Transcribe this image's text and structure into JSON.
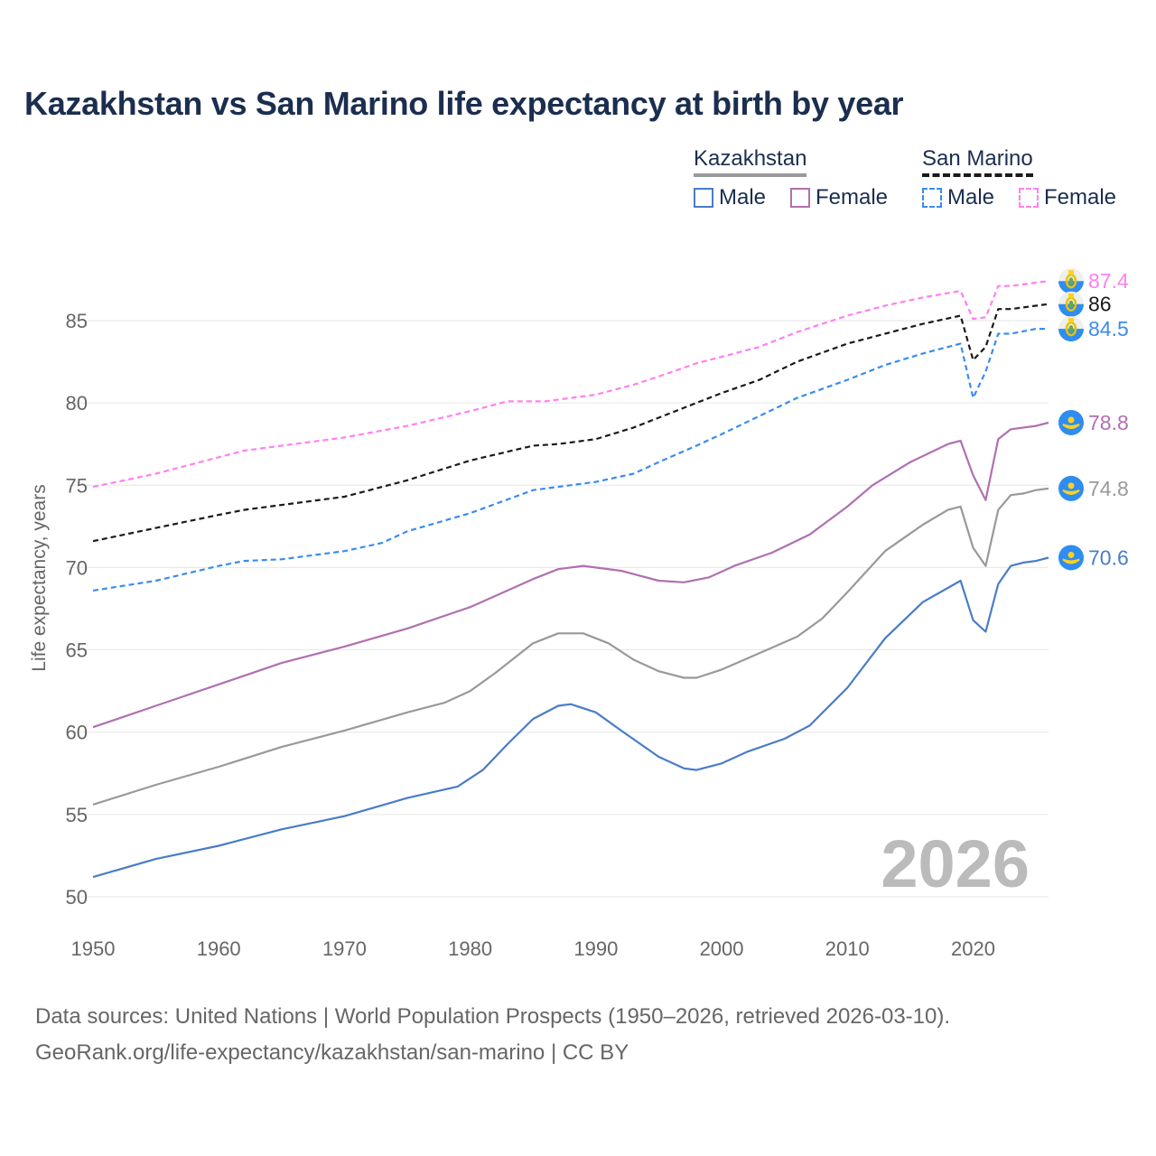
{
  "title": "Kazakhstan vs San Marino life expectancy at birth by year",
  "legend": {
    "groups": [
      {
        "name": "Kazakhstan",
        "items": [
          "Male",
          "Female"
        ]
      },
      {
        "name": "San Marino",
        "items": [
          "Male",
          "Female"
        ]
      }
    ]
  },
  "year_watermark": "2026",
  "footer": {
    "line1": "Data sources: United Nations | World Population Prospects (1950–2026, retrieved 2026-03-10).",
    "line2": "GeoRank.org/life-expectancy/kazakhstan/san-marino | CC BY"
  },
  "chart_data": {
    "type": "line",
    "title": "Kazakhstan vs San Marino life expectancy at birth by year",
    "xlabel": "",
    "ylabel": "Life expectancy, years",
    "xlim": [
      1950,
      2026
    ],
    "ylim": [
      50,
      88
    ],
    "xticks": [
      "1950",
      "1960",
      "1970",
      "1980",
      "1990",
      "2000",
      "2010",
      "2020"
    ],
    "yticks": [
      "50",
      "55",
      "60",
      "65",
      "70",
      "75",
      "80",
      "85"
    ],
    "grid": true,
    "legend_position": "top-right",
    "series": [
      {
        "name": "San Marino Female",
        "color": "#ff80f0",
        "dashed": true,
        "end_label": "87.4",
        "flag": "san-marino",
        "x": [
          1950,
          1955,
          1960,
          1962,
          1965,
          1970,
          1975,
          1980,
          1983,
          1986,
          1990,
          1993,
          1995,
          1998,
          2000,
          2003,
          2006,
          2010,
          2013,
          2016,
          2019,
          2020,
          2021,
          2022,
          2023,
          2025,
          2026
        ],
        "y": [
          74.9,
          75.7,
          76.7,
          77.1,
          77.4,
          77.9,
          78.6,
          79.5,
          80.1,
          80.1,
          80.5,
          81.1,
          81.6,
          82.4,
          82.8,
          83.4,
          84.3,
          85.3,
          85.9,
          86.4,
          86.8,
          85.1,
          85.2,
          87.1,
          87.1,
          87.3,
          87.4
        ]
      },
      {
        "name": "San Marino Total",
        "color": "#1a1a1a",
        "dashed": true,
        "end_label": "86",
        "flag": "san-marino",
        "x": [
          1950,
          1955,
          1960,
          1962,
          1965,
          1970,
          1975,
          1980,
          1985,
          1987,
          1990,
          1993,
          1995,
          1998,
          2000,
          2003,
          2006,
          2010,
          2013,
          2016,
          2019,
          2020,
          2021,
          2022,
          2023,
          2025,
          2026
        ],
        "y": [
          71.6,
          72.4,
          73.2,
          73.5,
          73.8,
          74.3,
          75.3,
          76.5,
          77.4,
          77.5,
          77.8,
          78.5,
          79.1,
          80.0,
          80.6,
          81.4,
          82.5,
          83.6,
          84.2,
          84.8,
          85.3,
          82.6,
          83.4,
          85.7,
          85.7,
          85.9,
          86.0
        ]
      },
      {
        "name": "San Marino Male",
        "color": "#3a8cf0",
        "dashed": true,
        "end_label": "84.5",
        "flag": "san-marino",
        "x": [
          1950,
          1955,
          1960,
          1962,
          1965,
          1970,
          1973,
          1975,
          1980,
          1985,
          1990,
          1993,
          1995,
          1998,
          2000,
          2003,
          2006,
          2010,
          2013,
          2016,
          2019,
          2020,
          2021,
          2022,
          2023,
          2025,
          2026
        ],
        "y": [
          68.6,
          69.2,
          70.1,
          70.4,
          70.5,
          71.0,
          71.5,
          72.2,
          73.3,
          74.7,
          75.2,
          75.7,
          76.4,
          77.4,
          78.1,
          79.2,
          80.3,
          81.4,
          82.3,
          83.0,
          83.6,
          80.3,
          81.9,
          84.2,
          84.2,
          84.5,
          84.5
        ]
      },
      {
        "name": "Kazakhstan Female",
        "color": "#b070b0",
        "dashed": false,
        "end_label": "78.8",
        "flag": "kazakhstan",
        "x": [
          1950,
          1955,
          1960,
          1965,
          1970,
          1975,
          1980,
          1985,
          1987,
          1989,
          1992,
          1995,
          1997,
          1999,
          2001,
          2004,
          2007,
          2010,
          2012,
          2015,
          2018,
          2019,
          2020,
          2021,
          2022,
          2023,
          2025,
          2026
        ],
        "y": [
          60.3,
          61.6,
          62.9,
          64.2,
          65.2,
          66.3,
          67.6,
          69.3,
          69.9,
          70.1,
          69.8,
          69.2,
          69.1,
          69.4,
          70.1,
          70.9,
          72.0,
          73.7,
          75.0,
          76.4,
          77.5,
          77.7,
          75.6,
          74.1,
          77.8,
          78.4,
          78.6,
          78.8
        ]
      },
      {
        "name": "Kazakhstan Total",
        "color": "#999999",
        "dashed": false,
        "end_label": "74.8",
        "flag": "kazakhstan",
        "x": [
          1950,
          1955,
          1960,
          1965,
          1970,
          1975,
          1978,
          1980,
          1982,
          1985,
          1987,
          1989,
          1991,
          1993,
          1995,
          1997,
          1998,
          2000,
          2003,
          2006,
          2008,
          2010,
          2013,
          2016,
          2018,
          2019,
          2020,
          2021,
          2022,
          2023,
          2024,
          2025,
          2026
        ],
        "y": [
          55.6,
          56.8,
          57.9,
          59.1,
          60.1,
          61.2,
          61.8,
          62.5,
          63.6,
          65.4,
          66.0,
          66.0,
          65.4,
          64.4,
          63.7,
          63.3,
          63.3,
          63.8,
          64.8,
          65.8,
          66.9,
          68.5,
          71.0,
          72.6,
          73.5,
          73.7,
          71.2,
          70.1,
          73.5,
          74.4,
          74.5,
          74.7,
          74.8
        ]
      },
      {
        "name": "Kazakhstan Male",
        "color": "#4a7cc8",
        "dashed": false,
        "end_label": "70.6",
        "flag": "kazakhstan",
        "x": [
          1950,
          1955,
          1960,
          1965,
          1970,
          1975,
          1979,
          1981,
          1983,
          1985,
          1987,
          1988,
          1990,
          1992,
          1995,
          1997,
          1998,
          2000,
          2002,
          2005,
          2007,
          2010,
          2013,
          2016,
          2019,
          2020,
          2021,
          2022,
          2023,
          2024,
          2025,
          2026
        ],
        "y": [
          51.2,
          52.3,
          53.1,
          54.1,
          54.9,
          56.0,
          56.7,
          57.7,
          59.3,
          60.8,
          61.6,
          61.7,
          61.2,
          60.1,
          58.5,
          57.8,
          57.7,
          58.1,
          58.8,
          59.6,
          60.4,
          62.7,
          65.7,
          67.9,
          69.2,
          66.8,
          66.1,
          69.0,
          70.1,
          70.3,
          70.4,
          70.6
        ]
      }
    ]
  }
}
